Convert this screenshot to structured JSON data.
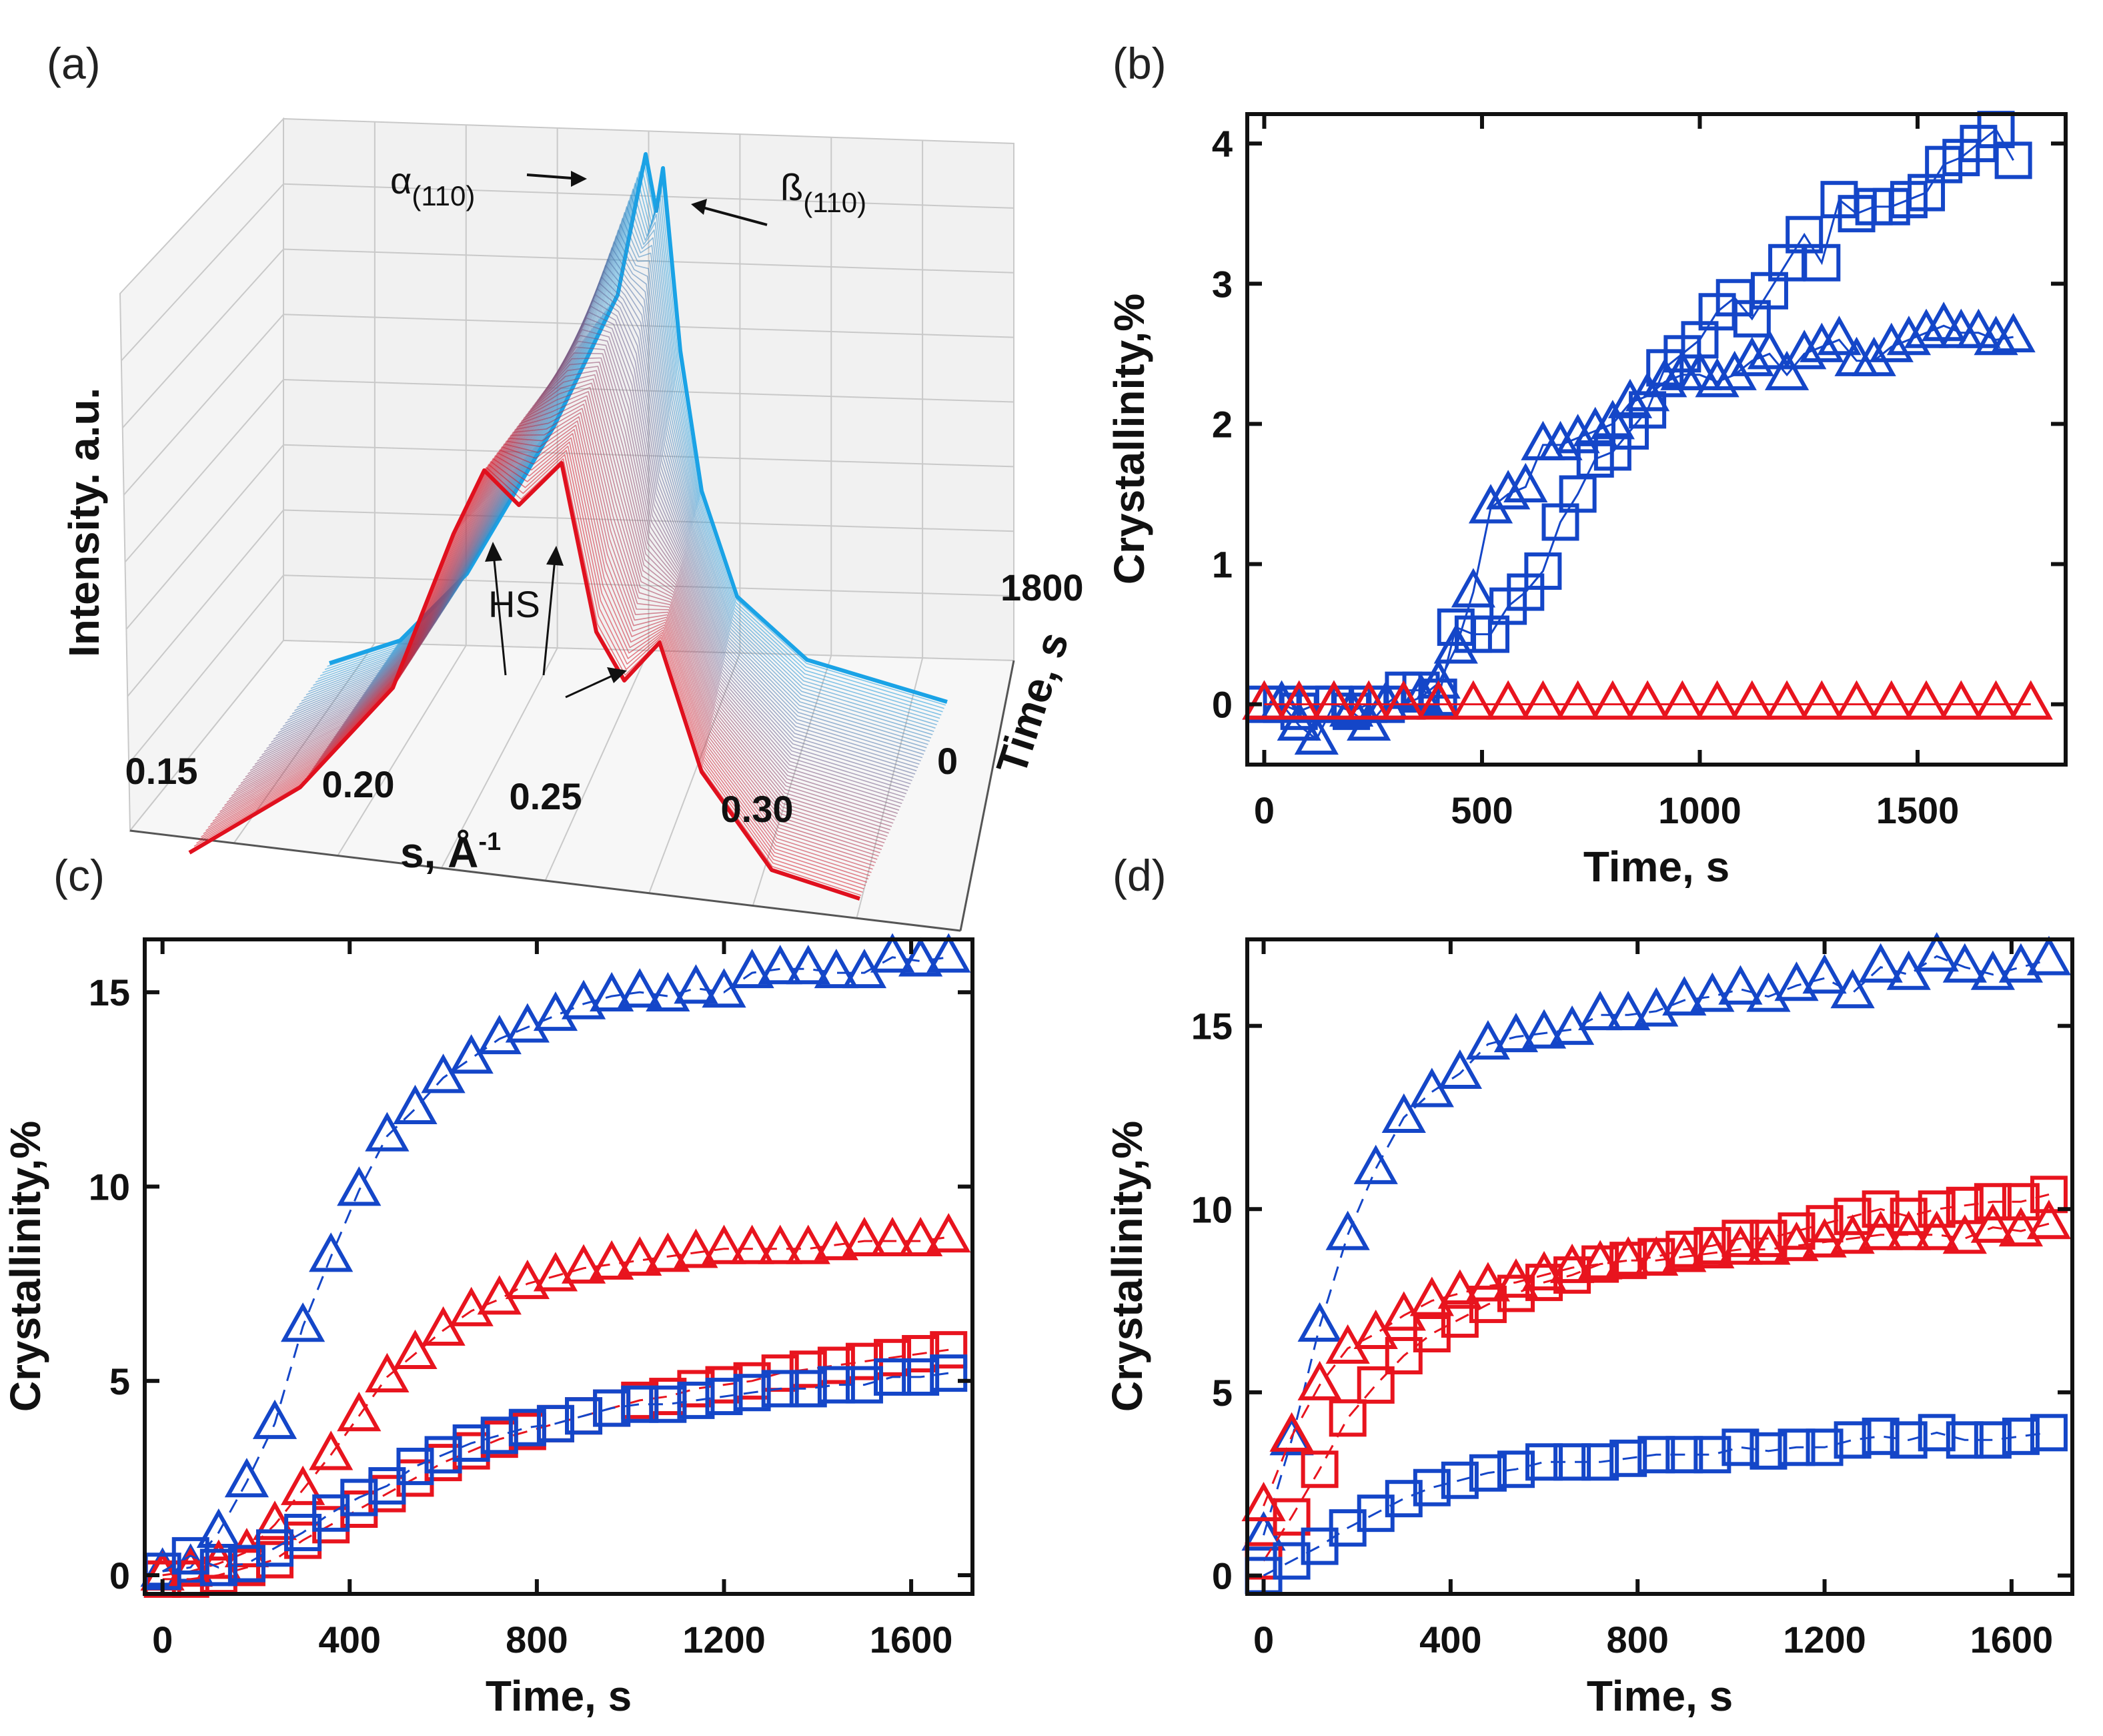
{
  "panel_labels": {
    "a": "(a)",
    "b": "(b)",
    "c": "(c)",
    "d": "(d)"
  },
  "panel_a": {
    "type": "3d-waterfall",
    "xlabel": "s, Å",
    "xlabel_sup": "-1",
    "ylabel": "Intensity. a.u.",
    "zlabel": "Time, s",
    "x_ticks": [
      "0.15",
      "0.20",
      "0.25",
      "0.30"
    ],
    "time_ticks": [
      "0",
      "1800"
    ],
    "annotations": {
      "alpha": "α",
      "alpha_sub": "(110)",
      "beta": "ß",
      "beta_sub": "(110)",
      "hs": "HS"
    },
    "colors": {
      "start": "#e0101e",
      "end": "#1aa3e6"
    }
  },
  "chart_data": [
    {
      "panel": "b",
      "type": "scatter",
      "xlabel": "Time, s",
      "ylabel": "Crystallinity,%",
      "xlim": [
        -39,
        1840
      ],
      "ylim": [
        -0.43,
        4.21
      ],
      "x_ticks": [
        0,
        500,
        1000,
        1500
      ],
      "y_ticks": [
        0,
        1,
        2,
        3,
        4
      ],
      "connect": "solid",
      "series": [
        {
          "marker": "square",
          "color": "#1446c8",
          "x_start": 0,
          "x_step": 40,
          "values": [
            0,
            0,
            -0.05,
            0,
            0,
            -0.05,
            0,
            0,
            0.1,
            0.1,
            0.05,
            0.55,
            0.5,
            0.5,
            0.7,
            0.8,
            0.95,
            1.3,
            1.5,
            1.75,
            1.8,
            1.95,
            2.1,
            2.4,
            2.5,
            2.6,
            2.8,
            2.9,
            2.75,
            2.95,
            3.15,
            3.35,
            3.15,
            3.6,
            3.5,
            3.55,
            3.55,
            3.6,
            3.65,
            3.85,
            3.9,
            4.0,
            4.1,
            3.88
          ]
        },
        {
          "marker": "triangle",
          "color": "#1446c8",
          "x_start": 0,
          "x_step": 40,
          "values": [
            0,
            0,
            -0.15,
            -0.25,
            0,
            -0.05,
            -0.15,
            0,
            0,
            0.05,
            0.15,
            0.4,
            0.8,
            1.4,
            1.5,
            1.55,
            1.85,
            1.85,
            1.9,
            1.95,
            2.0,
            2.15,
            2.2,
            2.3,
            2.35,
            2.35,
            2.3,
            2.35,
            2.45,
            2.5,
            2.35,
            2.5,
            2.55,
            2.6,
            2.45,
            2.45,
            2.55,
            2.6,
            2.65,
            2.7,
            2.65,
            2.65,
            2.6,
            2.62
          ]
        },
        {
          "marker": "triangle",
          "color": "#e8141e",
          "x_start": 0,
          "x_step": 80,
          "values": [
            0,
            0,
            0,
            0,
            0,
            0,
            0,
            0,
            0,
            0,
            0,
            0,
            0,
            0,
            0,
            0,
            0,
            0,
            0,
            0,
            0,
            0,
            0
          ]
        }
      ]
    },
    {
      "panel": "c",
      "type": "scatter",
      "xlabel": "Time, s",
      "ylabel": "Crystallinity,%",
      "xlim": [
        -38,
        1731
      ],
      "ylim": [
        -0.48,
        16.36
      ],
      "x_ticks": [
        0,
        400,
        800,
        1200,
        1600
      ],
      "y_ticks": [
        0,
        5,
        10,
        15
      ],
      "connect": "dashed",
      "series": [
        {
          "marker": "triangle",
          "color": "#1446c8",
          "x_start": 0,
          "x_step": 60,
          "values": [
            0.1,
            0.2,
            1.1,
            2.4,
            3.9,
            6.4,
            8.2,
            9.9,
            11.3,
            12.0,
            12.8,
            13.3,
            13.8,
            14.1,
            14.4,
            14.7,
            14.9,
            15.0,
            14.9,
            15.1,
            15.0,
            15.5,
            15.6,
            15.6,
            15.5,
            15.5,
            15.9,
            15.8,
            15.9
          ]
        },
        {
          "marker": "triangle",
          "color": "#e8141e",
          "x_start": 0,
          "x_step": 60,
          "values": [
            0,
            0.1,
            0.3,
            0.6,
            1.3,
            2.2,
            3.1,
            4.1,
            5.1,
            5.7,
            6.3,
            6.8,
            7.1,
            7.5,
            7.7,
            7.9,
            8.0,
            8.1,
            8.2,
            8.3,
            8.4,
            8.4,
            8.4,
            8.4,
            8.5,
            8.6,
            8.6,
            8.6,
            8.7
          ]
        },
        {
          "marker": "square",
          "color": "#e8141e",
          "x_start": 0,
          "x_step": 60,
          "values": [
            -0.1,
            -0.1,
            0,
            0.2,
            0.4,
            0.9,
            1.3,
            1.7,
            2.1,
            2.5,
            2.9,
            3.2,
            3.5,
            3.7,
            3.9,
            4.1,
            4.3,
            4.5,
            4.6,
            4.8,
            4.9,
            5.0,
            5.2,
            5.3,
            5.4,
            5.5,
            5.6,
            5.7,
            5.8
          ]
        },
        {
          "marker": "square",
          "color": "#1446c8",
          "x_start": 0,
          "x_step": 60,
          "values": [
            0.1,
            0.5,
            0.2,
            0.3,
            0.7,
            1.1,
            1.6,
            2.0,
            2.3,
            2.8,
            3.1,
            3.4,
            3.6,
            3.8,
            3.9,
            4.1,
            4.3,
            4.4,
            4.4,
            4.5,
            4.6,
            4.7,
            4.8,
            4.8,
            4.9,
            4.9,
            5.1,
            5.1,
            5.2
          ]
        }
      ]
    },
    {
      "panel": "d",
      "type": "scatter",
      "xlabel": "Time, s",
      "ylabel": "Crystallinity,%",
      "xlim": [
        -35,
        1730
      ],
      "ylim": [
        -0.5,
        17.36
      ],
      "x_ticks": [
        0,
        400,
        800,
        1200,
        1600
      ],
      "y_ticks": [
        0,
        5,
        10,
        15
      ],
      "connect": "dashed",
      "series": [
        {
          "marker": "triangle",
          "color": "#1446c8",
          "x_start": 0,
          "x_step": 60,
          "values": [
            1.1,
            3.7,
            6.8,
            9.3,
            11.1,
            12.5,
            13.2,
            13.7,
            14.5,
            14.7,
            14.8,
            14.9,
            15.3,
            15.3,
            15.4,
            15.7,
            15.8,
            16.0,
            15.8,
            16.1,
            16.3,
            15.9,
            16.6,
            16.4,
            16.9,
            16.6,
            16.4,
            16.6,
            16.8
          ]
        },
        {
          "marker": "triangle",
          "color": "#e8141e",
          "x_start": 0,
          "x_step": 60,
          "values": [
            1.9,
            3.8,
            5.2,
            6.2,
            6.6,
            7.1,
            7.5,
            7.7,
            7.9,
            8.0,
            8.2,
            8.4,
            8.5,
            8.6,
            8.6,
            8.7,
            8.8,
            8.9,
            8.9,
            9.0,
            9.1,
            9.2,
            9.3,
            9.3,
            9.3,
            9.2,
            9.5,
            9.4,
            9.6
          ]
        },
        {
          "marker": "square",
          "color": "#e8141e",
          "x_start": 0,
          "x_step": 60,
          "values": [
            0.4,
            1.6,
            2.9,
            4.3,
            5.2,
            6.0,
            6.6,
            7.0,
            7.4,
            7.7,
            8.0,
            8.2,
            8.5,
            8.6,
            8.7,
            8.9,
            9.0,
            9.2,
            9.2,
            9.4,
            9.6,
            9.8,
            10.0,
            9.8,
            10.0,
            10.1,
            10.2,
            10.2,
            10.4
          ]
        },
        {
          "marker": "square",
          "color": "#1446c8",
          "x_start": 0,
          "x_step": 60,
          "values": [
            0,
            0.4,
            0.8,
            1.3,
            1.7,
            2.1,
            2.4,
            2.6,
            2.8,
            2.9,
            3.1,
            3.1,
            3.1,
            3.2,
            3.3,
            3.3,
            3.3,
            3.5,
            3.4,
            3.5,
            3.5,
            3.7,
            3.8,
            3.7,
            3.9,
            3.7,
            3.7,
            3.8,
            3.9
          ]
        }
      ]
    }
  ]
}
